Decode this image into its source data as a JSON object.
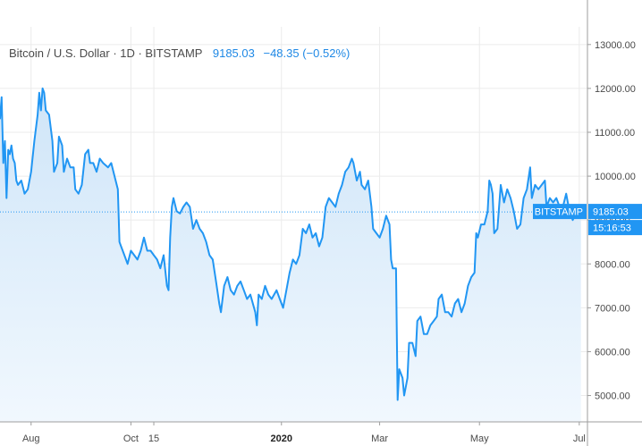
{
  "legend": {
    "symbol": "Bitcoin / U.S. Dollar · 1D · BITSTAMP",
    "price": "9185.03",
    "change": "−48.35 (−0.52%)"
  },
  "last_price_tag": {
    "exchange": "BITSTAMP",
    "price": "9185.03",
    "countdown": "15:16:53"
  },
  "colors": {
    "line": "#2196f3",
    "fill_top": "#cfe5f8",
    "fill_bottom": "#f1f8fe",
    "tag_bg": "#2196f3",
    "grid": "#ebebeb",
    "axis": "#9e9e9e"
  },
  "chart_data": {
    "type": "area",
    "title": "",
    "xlabel": "",
    "ylabel": "",
    "ylim": [
      4400,
      13200
    ],
    "y_ticks": [
      "13000.00",
      "12000.00",
      "11000.00",
      "10000.00",
      "9000.00",
      "8000.00",
      "7000.00",
      "6000.00",
      "5000.00"
    ],
    "x_range": [
      "2019-07-13",
      "2020-07-06"
    ],
    "x_ticks": [
      {
        "label": "Aug",
        "date": "2019-08-01",
        "bold": false
      },
      {
        "label": "Oct",
        "date": "2019-10-01",
        "bold": false
      },
      {
        "label": "15",
        "date": "2019-10-15",
        "bold": false
      },
      {
        "label": "2020",
        "date": "2020-01-01",
        "bold": true
      },
      {
        "label": "Mar",
        "date": "2020-03-01",
        "bold": false
      },
      {
        "label": "May",
        "date": "2020-05-01",
        "bold": false
      },
      {
        "label": "Jul",
        "date": "2020-07-01",
        "bold": false
      }
    ],
    "grid": true,
    "series": [
      {
        "points": [
          [
            "2019-07-13",
            11300
          ],
          [
            "2019-07-14",
            11800
          ],
          [
            "2019-07-15",
            10300
          ],
          [
            "2019-07-16",
            10800
          ],
          [
            "2019-07-17",
            9500
          ],
          [
            "2019-07-18",
            10600
          ],
          [
            "2019-07-19",
            10500
          ],
          [
            "2019-07-20",
            10700
          ],
          [
            "2019-07-21",
            10400
          ],
          [
            "2019-07-22",
            10300
          ],
          [
            "2019-07-23",
            9900
          ],
          [
            "2019-07-24",
            9800
          ],
          [
            "2019-07-26",
            9900
          ],
          [
            "2019-07-28",
            9600
          ],
          [
            "2019-07-30",
            9700
          ],
          [
            "2019-08-01",
            10100
          ],
          [
            "2019-08-03",
            10800
          ],
          [
            "2019-08-05",
            11400
          ],
          [
            "2019-08-06",
            11900
          ],
          [
            "2019-08-07",
            11500
          ],
          [
            "2019-08-08",
            12000
          ],
          [
            "2019-08-09",
            11900
          ],
          [
            "2019-08-10",
            11500
          ],
          [
            "2019-08-12",
            11400
          ],
          [
            "2019-08-14",
            10800
          ],
          [
            "2019-08-15",
            10100
          ],
          [
            "2019-08-17",
            10300
          ],
          [
            "2019-08-18",
            10900
          ],
          [
            "2019-08-20",
            10700
          ],
          [
            "2019-08-21",
            10100
          ],
          [
            "2019-08-23",
            10400
          ],
          [
            "2019-08-25",
            10200
          ],
          [
            "2019-08-27",
            10200
          ],
          [
            "2019-08-28",
            9700
          ],
          [
            "2019-08-30",
            9600
          ],
          [
            "2019-09-01",
            9800
          ],
          [
            "2019-09-03",
            10500
          ],
          [
            "2019-09-05",
            10600
          ],
          [
            "2019-09-06",
            10300
          ],
          [
            "2019-09-08",
            10300
          ],
          [
            "2019-09-10",
            10100
          ],
          [
            "2019-09-12",
            10400
          ],
          [
            "2019-09-14",
            10300
          ],
          [
            "2019-09-17",
            10200
          ],
          [
            "2019-09-19",
            10300
          ],
          [
            "2019-09-21",
            10000
          ],
          [
            "2019-09-23",
            9700
          ],
          [
            "2019-09-24",
            8500
          ],
          [
            "2019-09-25",
            8400
          ],
          [
            "2019-09-27",
            8200
          ],
          [
            "2019-09-29",
            8000
          ],
          [
            "2019-10-01",
            8300
          ],
          [
            "2019-10-03",
            8200
          ],
          [
            "2019-10-05",
            8100
          ],
          [
            "2019-10-07",
            8300
          ],
          [
            "2019-10-09",
            8600
          ],
          [
            "2019-10-11",
            8300
          ],
          [
            "2019-10-13",
            8300
          ],
          [
            "2019-10-15",
            8200
          ],
          [
            "2019-10-17",
            8100
          ],
          [
            "2019-10-19",
            7900
          ],
          [
            "2019-10-21",
            8200
          ],
          [
            "2019-10-23",
            7500
          ],
          [
            "2019-10-24",
            7400
          ],
          [
            "2019-10-25",
            8600
          ],
          [
            "2019-10-26",
            9300
          ],
          [
            "2019-10-27",
            9500
          ],
          [
            "2019-10-29",
            9200
          ],
          [
            "2019-10-31",
            9150
          ],
          [
            "2019-11-02",
            9300
          ],
          [
            "2019-11-04",
            9400
          ],
          [
            "2019-11-06",
            9300
          ],
          [
            "2019-11-08",
            8800
          ],
          [
            "2019-11-10",
            9000
          ],
          [
            "2019-11-12",
            8800
          ],
          [
            "2019-11-14",
            8700
          ],
          [
            "2019-11-16",
            8500
          ],
          [
            "2019-11-18",
            8200
          ],
          [
            "2019-11-20",
            8100
          ],
          [
            "2019-11-22",
            7600
          ],
          [
            "2019-11-24",
            7100
          ],
          [
            "2019-11-25",
            6900
          ],
          [
            "2019-11-27",
            7500
          ],
          [
            "2019-11-29",
            7700
          ],
          [
            "2019-12-01",
            7400
          ],
          [
            "2019-12-03",
            7300
          ],
          [
            "2019-12-05",
            7500
          ],
          [
            "2019-12-07",
            7600
          ],
          [
            "2019-12-09",
            7400
          ],
          [
            "2019-12-11",
            7200
          ],
          [
            "2019-12-13",
            7300
          ],
          [
            "2019-12-16",
            6900
          ],
          [
            "2019-12-17",
            6600
          ],
          [
            "2019-12-18",
            7300
          ],
          [
            "2019-12-20",
            7200
          ],
          [
            "2019-12-22",
            7500
          ],
          [
            "2019-12-24",
            7300
          ],
          [
            "2019-12-26",
            7200
          ],
          [
            "2019-12-29",
            7400
          ],
          [
            "2019-12-31",
            7200
          ],
          [
            "2020-01-02",
            7000
          ],
          [
            "2020-01-04",
            7400
          ],
          [
            "2020-01-06",
            7800
          ],
          [
            "2020-01-08",
            8100
          ],
          [
            "2020-01-10",
            8000
          ],
          [
            "2020-01-12",
            8200
          ],
          [
            "2020-01-14",
            8800
          ],
          [
            "2020-01-16",
            8700
          ],
          [
            "2020-01-18",
            8900
          ],
          [
            "2020-01-20",
            8600
          ],
          [
            "2020-01-22",
            8700
          ],
          [
            "2020-01-24",
            8400
          ],
          [
            "2020-01-26",
            8600
          ],
          [
            "2020-01-28",
            9300
          ],
          [
            "2020-01-30",
            9500
          ],
          [
            "2020-02-01",
            9400
          ],
          [
            "2020-02-03",
            9300
          ],
          [
            "2020-02-05",
            9600
          ],
          [
            "2020-02-07",
            9800
          ],
          [
            "2020-02-09",
            10100
          ],
          [
            "2020-02-11",
            10200
          ],
          [
            "2020-02-13",
            10400
          ],
          [
            "2020-02-14",
            10300
          ],
          [
            "2020-02-16",
            9900
          ],
          [
            "2020-02-18",
            10100
          ],
          [
            "2020-02-19",
            9800
          ],
          [
            "2020-02-21",
            9700
          ],
          [
            "2020-02-23",
            9900
          ],
          [
            "2020-02-25",
            9300
          ],
          [
            "2020-02-26",
            8800
          ],
          [
            "2020-02-28",
            8700
          ],
          [
            "2020-03-01",
            8600
          ],
          [
            "2020-03-03",
            8800
          ],
          [
            "2020-03-05",
            9100
          ],
          [
            "2020-03-07",
            8900
          ],
          [
            "2020-03-08",
            8100
          ],
          [
            "2020-03-09",
            7900
          ],
          [
            "2020-03-11",
            7900
          ],
          [
            "2020-03-12",
            4900
          ],
          [
            "2020-03-13",
            5600
          ],
          [
            "2020-03-15",
            5400
          ],
          [
            "2020-03-16",
            5000
          ],
          [
            "2020-03-18",
            5400
          ],
          [
            "2020-03-19",
            6200
          ],
          [
            "2020-03-21",
            6200
          ],
          [
            "2020-03-23",
            5900
          ],
          [
            "2020-03-24",
            6700
          ],
          [
            "2020-03-26",
            6800
          ],
          [
            "2020-03-28",
            6400
          ],
          [
            "2020-03-30",
            6400
          ],
          [
            "2020-04-01",
            6600
          ],
          [
            "2020-04-03",
            6700
          ],
          [
            "2020-04-05",
            6800
          ],
          [
            "2020-04-06",
            7200
          ],
          [
            "2020-04-08",
            7300
          ],
          [
            "2020-04-10",
            6900
          ],
          [
            "2020-04-12",
            6900
          ],
          [
            "2020-04-14",
            6800
          ],
          [
            "2020-04-16",
            7100
          ],
          [
            "2020-04-18",
            7200
          ],
          [
            "2020-04-20",
            6900
          ],
          [
            "2020-04-22",
            7100
          ],
          [
            "2020-04-24",
            7500
          ],
          [
            "2020-04-26",
            7700
          ],
          [
            "2020-04-28",
            7800
          ],
          [
            "2020-04-29",
            8700
          ],
          [
            "2020-04-30",
            8600
          ],
          [
            "2020-05-02",
            8900
          ],
          [
            "2020-05-04",
            8900
          ],
          [
            "2020-05-06",
            9200
          ],
          [
            "2020-05-07",
            9900
          ],
          [
            "2020-05-08",
            9800
          ],
          [
            "2020-05-09",
            9600
          ],
          [
            "2020-05-10",
            8700
          ],
          [
            "2020-05-12",
            8800
          ],
          [
            "2020-05-14",
            9800
          ],
          [
            "2020-05-16",
            9400
          ],
          [
            "2020-05-18",
            9700
          ],
          [
            "2020-05-20",
            9500
          ],
          [
            "2020-05-22",
            9200
          ],
          [
            "2020-05-24",
            8800
          ],
          [
            "2020-05-26",
            8900
          ],
          [
            "2020-05-28",
            9500
          ],
          [
            "2020-05-30",
            9700
          ],
          [
            "2020-06-01",
            10200
          ],
          [
            "2020-06-02",
            9500
          ],
          [
            "2020-06-04",
            9800
          ],
          [
            "2020-06-06",
            9700
          ],
          [
            "2020-06-08",
            9800
          ],
          [
            "2020-06-10",
            9900
          ],
          [
            "2020-06-11",
            9300
          ],
          [
            "2020-06-13",
            9500
          ],
          [
            "2020-06-15",
            9400
          ],
          [
            "2020-06-17",
            9500
          ],
          [
            "2020-06-19",
            9300
          ],
          [
            "2020-06-21",
            9300
          ],
          [
            "2020-06-23",
            9600
          ],
          [
            "2020-06-25",
            9200
          ],
          [
            "2020-06-27",
            9000
          ],
          [
            "2020-06-29",
            9150
          ],
          [
            "2020-07-01",
            9200
          ],
          [
            "2020-07-02",
            9185.03
          ]
        ]
      }
    ]
  }
}
